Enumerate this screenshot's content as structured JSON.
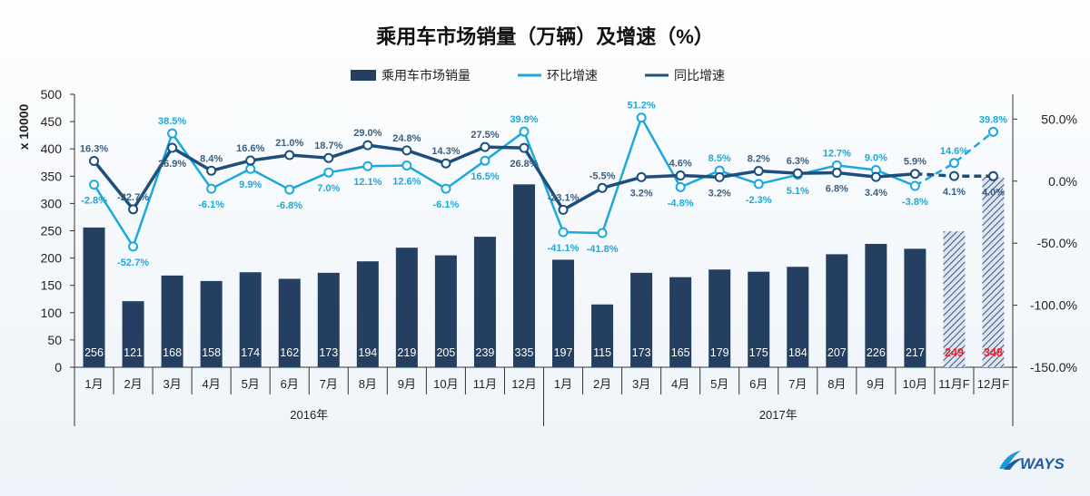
{
  "chart_data": {
    "type": "bar",
    "title": "乘用车市场销量（万辆）及增速（%）",
    "ylabel": "x 10000",
    "ylim": [
      0,
      500
    ],
    "yticks": [
      "0",
      "50",
      "100",
      "150",
      "200",
      "250",
      "300",
      "350",
      "400",
      "450",
      "500"
    ],
    "y2lim": [
      -150,
      70
    ],
    "y2ticks": [
      "50.0%",
      "0.0%",
      "-50.0%",
      "-100.0%",
      "-150.0%"
    ],
    "y2tick_values": [
      50,
      0,
      -50,
      -100,
      -150
    ],
    "legend_position": "top",
    "legend": [
      "乘用车市场销量",
      "环比增速",
      "同比增速"
    ],
    "colors": {
      "bar": "#243f62",
      "mom": "#1ba9dd",
      "yoy": "#1d4f7c",
      "forecast_label": "#e8212e"
    },
    "categories": [
      "1月",
      "2月",
      "3月",
      "4月",
      "5月",
      "6月",
      "7月",
      "8月",
      "9月",
      "10月",
      "11月",
      "12月",
      "1月",
      "2月",
      "3月",
      "4月",
      "5月",
      "6月",
      "7月",
      "8月",
      "9月",
      "10月",
      "11月F",
      "12月F"
    ],
    "year_groups": [
      {
        "label": "2016年",
        "start": 0,
        "end": 11
      },
      {
        "label": "2017年",
        "start": 12,
        "end": 23
      }
    ],
    "forecast_from": 22,
    "series": [
      {
        "name": "乘用车市场销量",
        "kind": "bar",
        "values": [
          256,
          121,
          168,
          158,
          174,
          162,
          173,
          194,
          219,
          205,
          239,
          335,
          197,
          115,
          173,
          165,
          179,
          175,
          184,
          207,
          226,
          217,
          249,
          348
        ],
        "labels": [
          "256",
          "121",
          "168",
          "158",
          "174",
          "162",
          "173",
          "194",
          "219",
          "205",
          "239",
          "335",
          "197",
          "115",
          "173",
          "165",
          "179",
          "175",
          "184",
          "207",
          "226",
          "217",
          "249",
          "348"
        ]
      },
      {
        "name": "环比增速",
        "kind": "line",
        "values": [
          -2.8,
          -52.7,
          38.5,
          -6.1,
          9.9,
          -6.8,
          7.0,
          12.1,
          12.6,
          -6.1,
          16.5,
          39.9,
          -41.1,
          -41.8,
          51.2,
          -4.8,
          8.5,
          -2.3,
          5.1,
          12.7,
          9.0,
          -3.8,
          14.6,
          39.8
        ],
        "labels": [
          "-2.8%",
          "-52.7%",
          "38.5%",
          "-6.1%",
          "9.9%",
          "-6.8%",
          "7.0%",
          "12.1%",
          "12.6%",
          "-6.1%",
          "16.5%",
          "39.9%",
          "-41.1%",
          "-41.8%",
          "51.2%",
          "-4.8%",
          "8.5%",
          "-2.3%",
          "5.1%",
          "12.7%",
          "9.0%",
          "-3.8%",
          "14.6%",
          "39.8%"
        ]
      },
      {
        "name": "同比增速",
        "kind": "line",
        "values": [
          16.3,
          -22.7,
          26.9,
          8.4,
          16.6,
          21.0,
          18.7,
          29.0,
          24.8,
          14.3,
          27.5,
          26.8,
          -23.1,
          -5.5,
          3.2,
          4.6,
          3.2,
          8.2,
          6.3,
          6.8,
          3.4,
          5.9,
          4.1,
          4.0
        ],
        "labels": [
          "16.3%",
          "-22.7%",
          "26.9%",
          "8.4%",
          "16.6%",
          "21.0%",
          "18.7%",
          "29.0%",
          "24.8%",
          "14.3%",
          "27.5%",
          "26.8%",
          "-23.1%",
          "-5.5%",
          "3.2%",
          "4.6%",
          "3.2%",
          "8.2%",
          "6.3%",
          "6.8%",
          "3.4%",
          "5.9%",
          "4.1%",
          "4.0%"
        ]
      }
    ]
  },
  "logo": {
    "text": "WAYS"
  }
}
